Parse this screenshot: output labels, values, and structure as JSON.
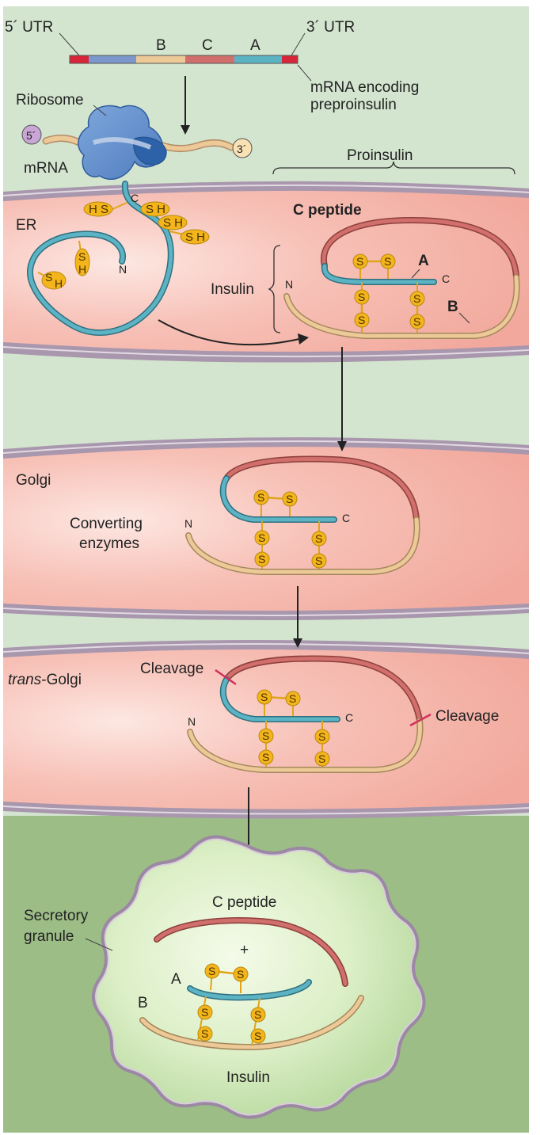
{
  "mrna_strip": {
    "utr5": "5´ UTR",
    "utr3": "3´ UTR",
    "seg_b": "B",
    "seg_c": "C",
    "seg_a": "A",
    "caption_line1": "mRNA encoding",
    "caption_line2": "preproinsulin"
  },
  "translation": {
    "ribosome": "Ribosome",
    "mrna": "mRNA",
    "end5": "5´",
    "end3": "3´",
    "c_terminus": "C",
    "n_terminus": "N",
    "sh1": "H S",
    "sh2": "S H",
    "sh3": "S H",
    "sh4": "S H",
    "sh5_s": "S",
    "sh5_h": "H",
    "sh6_s": "S",
    "sh6_h": "H"
  },
  "er": {
    "compartment": "ER",
    "proinsulin": "Proinsulin",
    "c_peptide": "C peptide",
    "insulin": "Insulin",
    "chain_a": "A",
    "chain_b": "B",
    "n_term": "N",
    "c_term": "C"
  },
  "golgi": {
    "compartment": "Golgi",
    "enzymes_line1": "Converting",
    "enzymes_line2": "enzymes",
    "n_term": "N",
    "c_term": "C"
  },
  "trans_golgi": {
    "compartment_italic": "trans",
    "compartment_rest": "-Golgi",
    "cleavage_left": "Cleavage",
    "cleavage_right": "Cleavage",
    "n_term": "N",
    "c_term": "C"
  },
  "granule": {
    "name_line1": "Secretory",
    "name_line2": "granule",
    "c_peptide": "C peptide",
    "plus": "+",
    "chain_a": "A",
    "chain_b": "B",
    "insulin": "Insulin"
  },
  "disulfide_atom": "S",
  "colors": {
    "chain_a": "#5cb3c4",
    "chain_b": "#ecc997",
    "c_peptide": "#d06f6b",
    "utr": "#d7263a",
    "chain_b_mrna": "#7b97cc",
    "ribosome": "#5b87c5",
    "sulfur": "#f3b51b",
    "membrane": "#a795ad",
    "lumen": "#f6b3a8",
    "cytosol": "#d1e3cd",
    "granule_bg": "#9cbc86"
  }
}
